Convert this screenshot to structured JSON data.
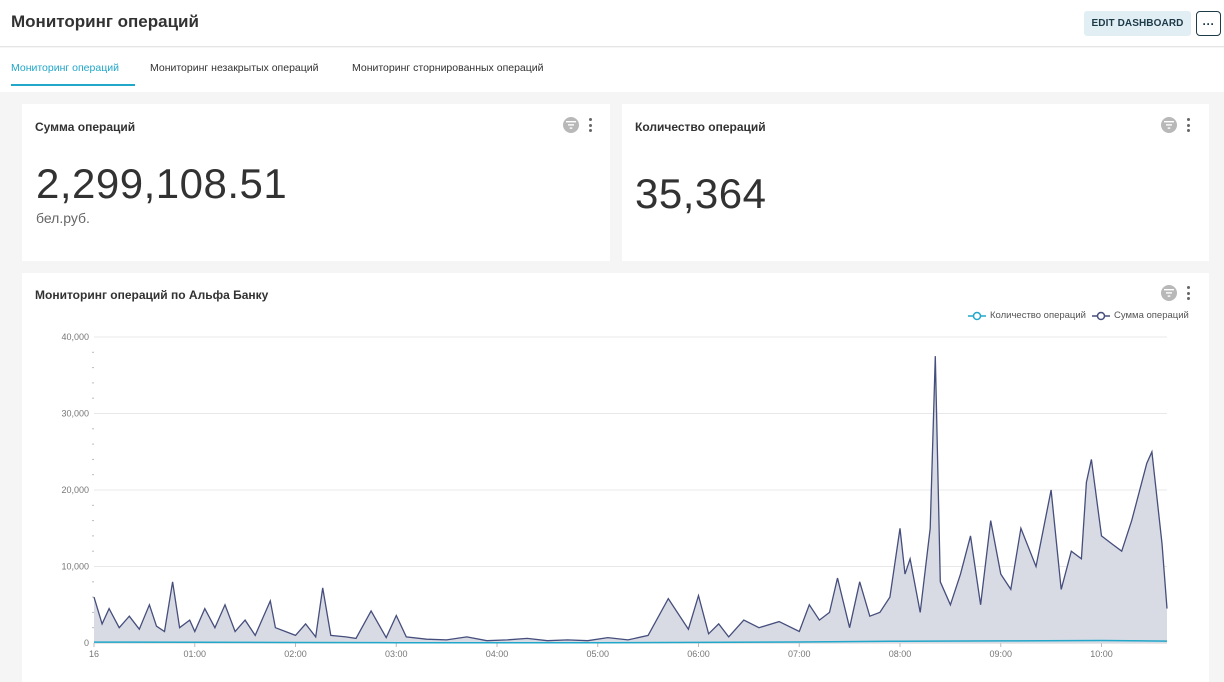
{
  "header": {
    "title": "Мониторинг операций",
    "edit_button": "EDIT DASHBOARD",
    "more_button": "···"
  },
  "tabs": [
    {
      "label": "Мониторинг операций",
      "active": true
    },
    {
      "label": "Мониторинг незакрытых операций",
      "active": false
    },
    {
      "label": "Мониторинг сторнированных операций",
      "active": false
    }
  ],
  "cards": {
    "sum": {
      "title": "Сумма операций",
      "value": "2,299,108.51",
      "unit": "бел.руб."
    },
    "count": {
      "title": "Количество операций",
      "value": "35,364"
    }
  },
  "chart_panel": {
    "title": "Мониторинг операций по Альфа Банку"
  },
  "colors": {
    "accent": "#20a7c9",
    "sum_series": "#454e7c",
    "sum_fill": "#d9dbe4",
    "count_series": "#20a7c9"
  },
  "icons": [
    "filter-icon",
    "kebab-icon",
    "more-icon"
  ],
  "chart_data": {
    "type": "area",
    "legend_position": "top-right",
    "grid": true,
    "xlabel": "",
    "ylabel": "",
    "ylim": [
      0,
      40000
    ],
    "xlim": [
      0,
      10.65
    ],
    "x_ticks": [
      {
        "value": 0,
        "label": "16"
      },
      {
        "value": 1,
        "label": "01:00"
      },
      {
        "value": 2,
        "label": "02:00"
      },
      {
        "value": 3,
        "label": "03:00"
      },
      {
        "value": 4,
        "label": "04:00"
      },
      {
        "value": 5,
        "label": "05:00"
      },
      {
        "value": 6,
        "label": "06:00"
      },
      {
        "value": 7,
        "label": "07:00"
      },
      {
        "value": 8,
        "label": "08:00"
      },
      {
        "value": 9,
        "label": "09:00"
      },
      {
        "value": 10,
        "label": "10:00"
      }
    ],
    "y_ticks": [
      {
        "value": 0,
        "label": "0"
      },
      {
        "value": 10000,
        "label": "10,000"
      },
      {
        "value": 20000,
        "label": "20,000"
      },
      {
        "value": 30000,
        "label": "30,000"
      },
      {
        "value": 40000,
        "label": "40,000"
      }
    ],
    "series": [
      {
        "name": "Количество операций",
        "color": "#20a7c9",
        "x": [
          0,
          1,
          2,
          3,
          4,
          5,
          6,
          7,
          8,
          9,
          10,
          10.65
        ],
        "y": [
          120,
          90,
          70,
          40,
          20,
          20,
          80,
          130,
          230,
          280,
          330,
          250
        ]
      },
      {
        "name": "Сумма операций",
        "color": "#454e7c",
        "x": [
          0,
          0.08,
          0.15,
          0.25,
          0.35,
          0.45,
          0.55,
          0.62,
          0.7,
          0.78,
          0.85,
          0.95,
          1.0,
          1.1,
          1.2,
          1.3,
          1.4,
          1.5,
          1.6,
          1.75,
          1.8,
          1.9,
          2.0,
          2.1,
          2.2,
          2.27,
          2.35,
          2.5,
          2.6,
          2.75,
          2.9,
          3.0,
          3.1,
          3.3,
          3.5,
          3.7,
          3.9,
          4.1,
          4.3,
          4.5,
          4.7,
          4.9,
          5.1,
          5.3,
          5.5,
          5.7,
          5.9,
          6.0,
          6.1,
          6.2,
          6.3,
          6.45,
          6.6,
          6.8,
          7.0,
          7.1,
          7.2,
          7.3,
          7.38,
          7.5,
          7.6,
          7.7,
          7.8,
          7.9,
          8.0,
          8.05,
          8.1,
          8.2,
          8.3,
          8.35,
          8.4,
          8.5,
          8.6,
          8.7,
          8.8,
          8.9,
          9.0,
          9.1,
          9.2,
          9.35,
          9.5,
          9.6,
          9.7,
          9.8,
          9.85,
          9.9,
          10.0,
          10.1,
          10.2,
          10.3,
          10.45,
          10.5,
          10.6,
          10.65
        ],
        "y": [
          6000,
          2500,
          4500,
          2000,
          3500,
          1800,
          5000,
          2200,
          1500,
          8000,
          2000,
          3000,
          1500,
          4500,
          2000,
          5000,
          1500,
          3000,
          1000,
          5500,
          2000,
          1500,
          1000,
          2500,
          800,
          7200,
          1000,
          800,
          600,
          4200,
          700,
          3600,
          800,
          500,
          400,
          800,
          300,
          400,
          600,
          300,
          400,
          300,
          700,
          400,
          1000,
          5800,
          1800,
          6200,
          1200,
          2500,
          800,
          3000,
          2000,
          2800,
          1500,
          5000,
          3000,
          4000,
          8500,
          2000,
          8000,
          3500,
          4000,
          6000,
          15000,
          9000,
          11000,
          4000,
          15000,
          37500,
          8000,
          5000,
          9000,
          14000,
          5000,
          16000,
          9000,
          7000,
          15000,
          10000,
          20000,
          7000,
          12000,
          11000,
          21000,
          24000,
          14000,
          13000,
          12000,
          16000,
          23500,
          25000,
          13000,
          4500
        ]
      }
    ]
  }
}
